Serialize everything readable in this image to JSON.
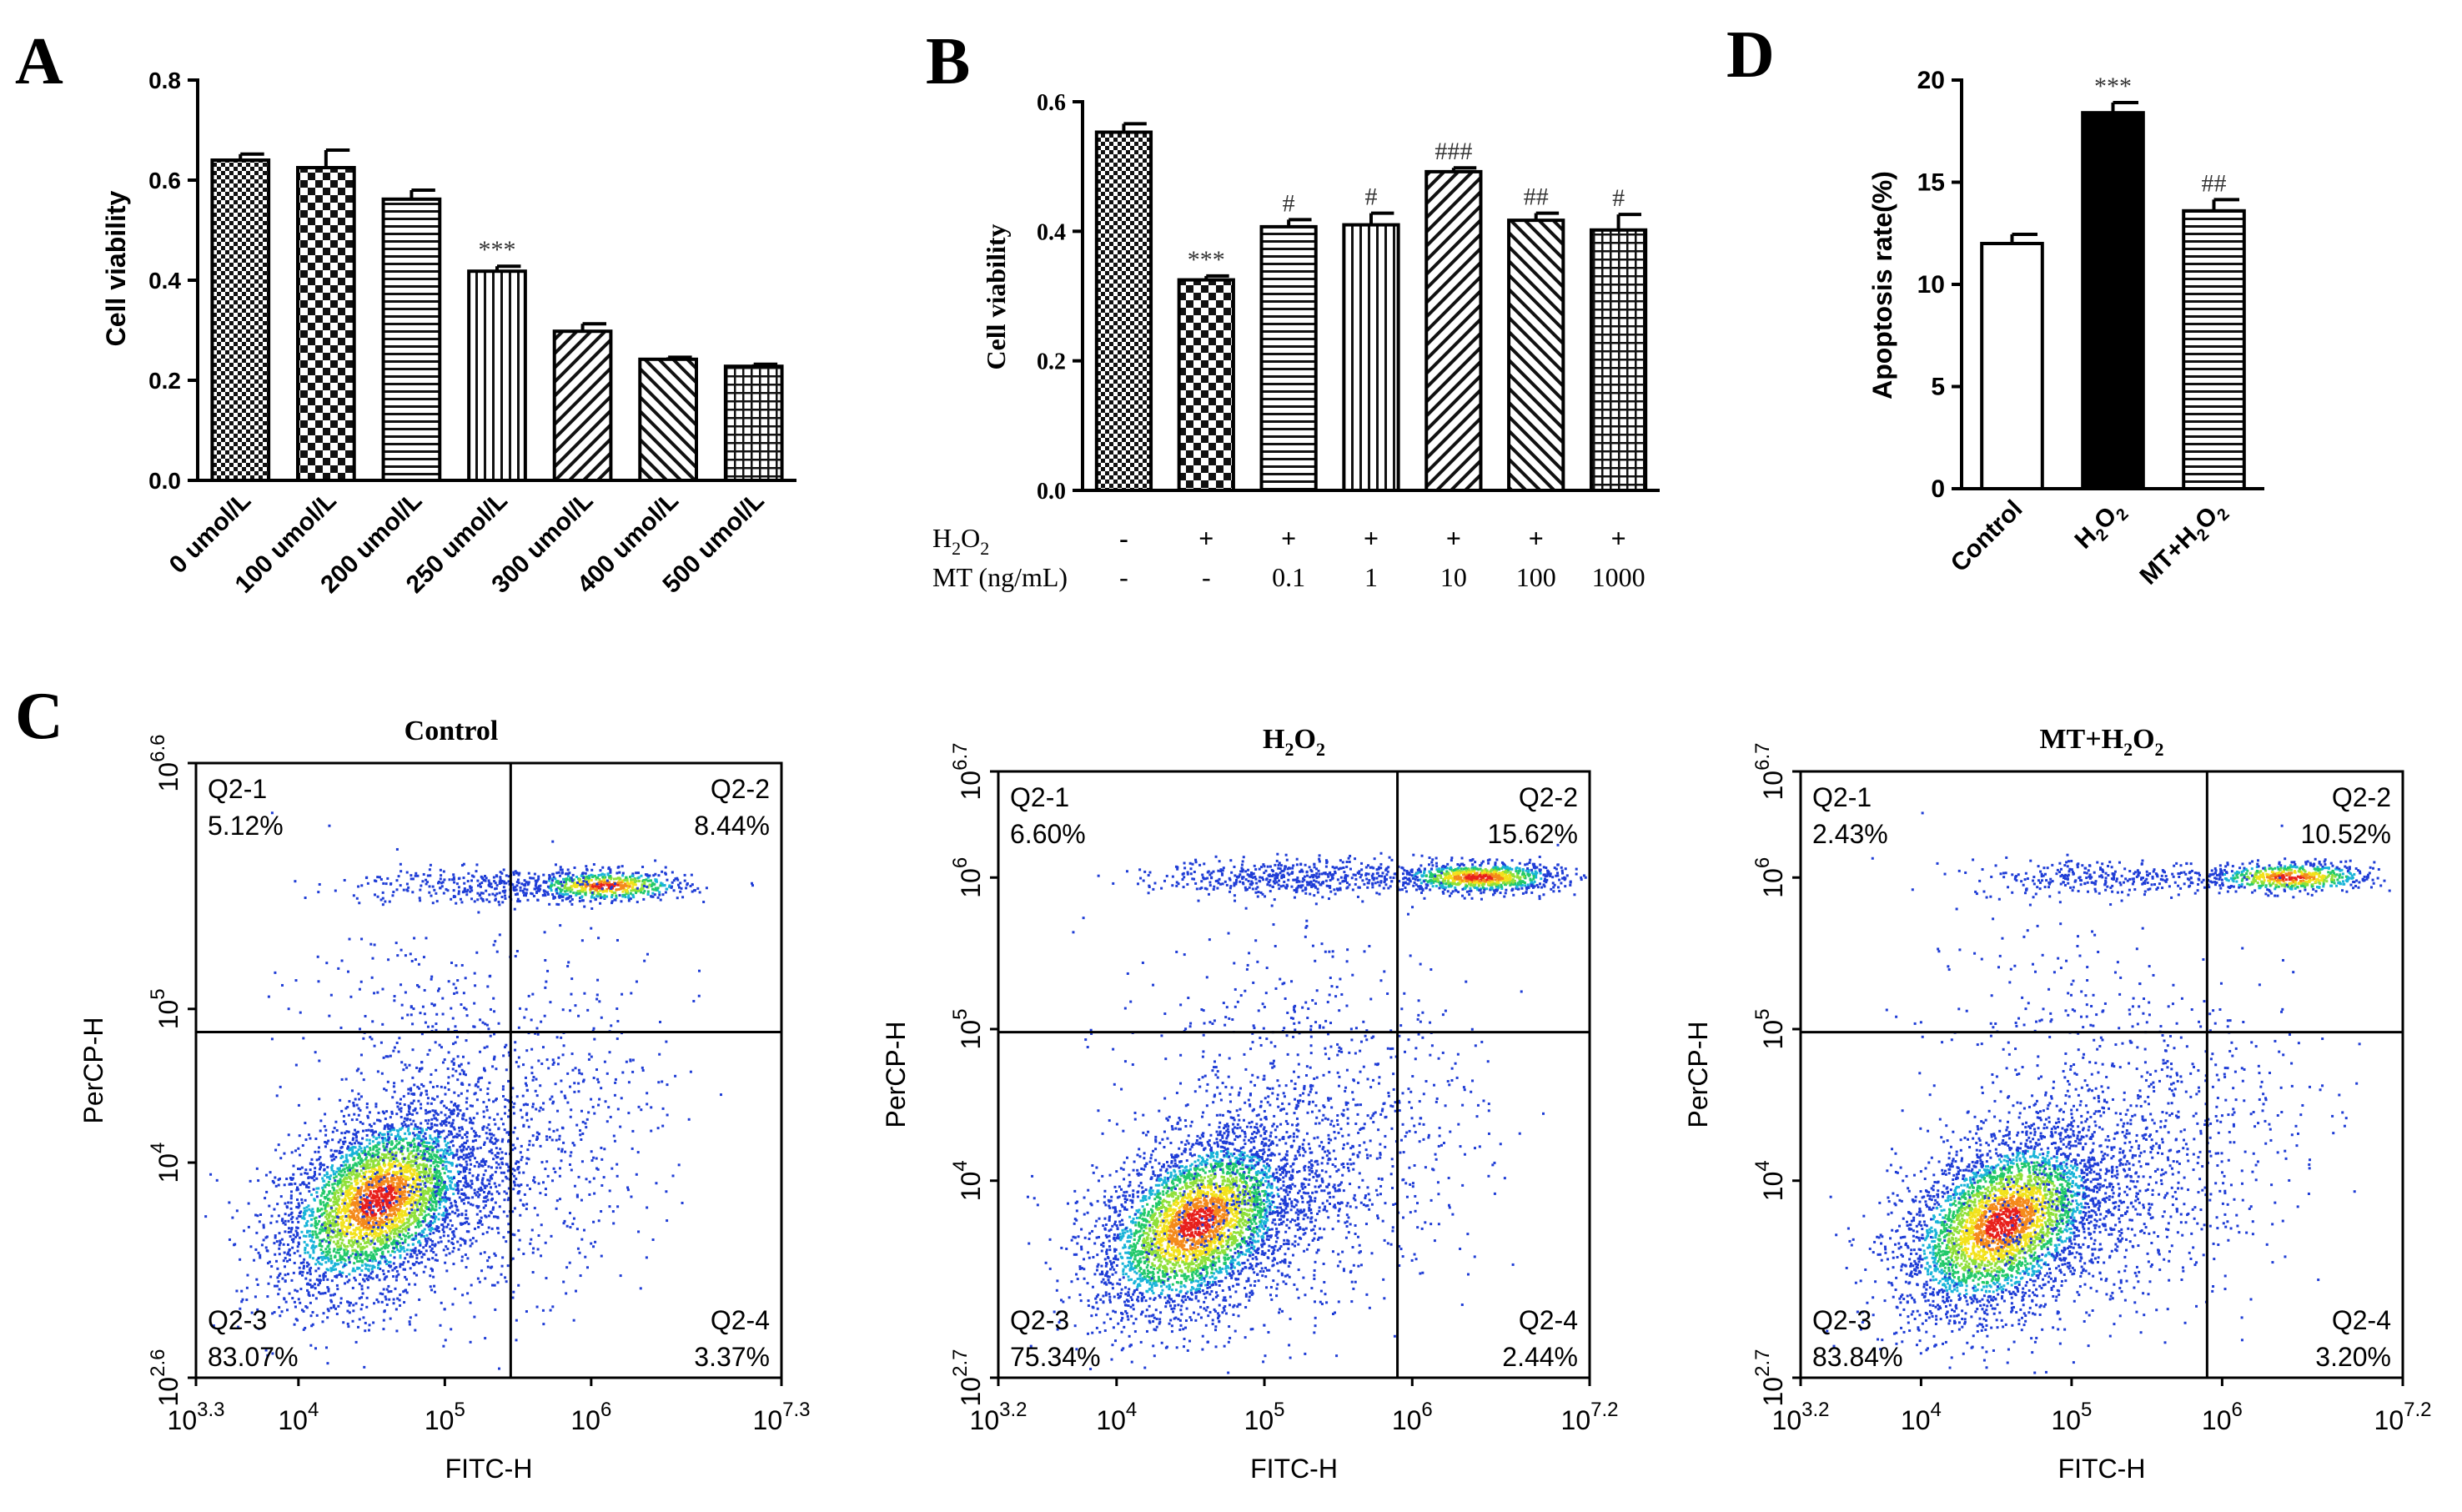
{
  "panel_letters": {
    "a": "A",
    "b": "B",
    "c": "C",
    "d": "D"
  },
  "chart_data": [
    {
      "id": "A",
      "type": "bar",
      "ylabel": "Cell viability",
      "ylim": [
        0,
        0.8
      ],
      "yticks": [
        "0.0",
        "0.2",
        "0.4",
        "0.6",
        "0.8"
      ],
      "categories": [
        "0 umol/L",
        "100 umol/L",
        "200 umol/L",
        "250 umol/L",
        "300 umol/L",
        "400 umol/L",
        "500 umol/L"
      ],
      "values": [
        0.64,
        0.625,
        0.562,
        0.418,
        0.298,
        0.242,
        0.228
      ],
      "errors": [
        0.012,
        0.035,
        0.018,
        0.01,
        0.015,
        0.004,
        0.004
      ],
      "patterns": [
        "checker",
        "checker-coarse",
        "hlines",
        "vlines",
        "diag",
        "diag-back",
        "grid"
      ],
      "annotations": [
        "",
        "",
        "",
        "***",
        "",
        "",
        ""
      ]
    },
    {
      "id": "B",
      "type": "bar",
      "ylabel": "Cell viability",
      "ylim": [
        0,
        0.6
      ],
      "yticks": [
        "0.0",
        "0.2",
        "0.4",
        "0.6"
      ],
      "values": [
        0.553,
        0.325,
        0.407,
        0.41,
        0.492,
        0.417,
        0.402
      ],
      "errors": [
        0.013,
        0.006,
        0.011,
        0.018,
        0.006,
        0.011,
        0.024
      ],
      "patterns": [
        "checker",
        "checker-coarse",
        "hlines",
        "vlines",
        "diag",
        "diag-back",
        "grid"
      ],
      "annotations": [
        "",
        "***",
        "#",
        "#",
        "###",
        "##",
        "#"
      ],
      "row_labels": {
        "h2o2": "H",
        "h2o2_sub": "2",
        "h2o2_tail": "O",
        "h2o2_sub2": "2",
        "mt": "MT (ng/mL)"
      },
      "h2o2_row": [
        "-",
        "+",
        "+",
        "+",
        "+",
        "+",
        "+"
      ],
      "mt_row": [
        "-",
        "-",
        "0.1",
        "1",
        "10",
        "100",
        "1000"
      ]
    },
    {
      "id": "D",
      "type": "bar",
      "ylabel": "Apoptosis rate(%)",
      "ylim": [
        0,
        20
      ],
      "yticks": [
        "0",
        "5",
        "10",
        "15",
        "20"
      ],
      "categories": [
        "Control",
        "H2O2",
        "MT+H2O2"
      ],
      "values": [
        12.0,
        18.4,
        13.6
      ],
      "errors": [
        0.45,
        0.5,
        0.55
      ],
      "patterns": [
        "white",
        "black",
        "hlines"
      ],
      "annotations": [
        "",
        "***",
        "##"
      ]
    },
    {
      "id": "C",
      "type": "scatter",
      "xlabel": "FITC-H",
      "ylabel": "PerCP-H",
      "plots": [
        {
          "title": "Control",
          "quadrants": {
            "q1": "Q2-1",
            "q1v": "5.12%",
            "q2": "Q2-2",
            "q2v": "8.44%",
            "q3": "Q2-3",
            "q3v": "83.07%",
            "q4": "Q2-4",
            "q4v": "3.37%"
          },
          "xrange": [
            3.3,
            7.3
          ],
          "yrange": [
            2.6,
            6.6
          ],
          "xticks": [
            {
              "b": "10",
              "e": "3.3",
              "v": 3.3
            },
            {
              "b": "10",
              "e": "4",
              "v": 4
            },
            {
              "b": "10",
              "e": "5",
              "v": 5
            },
            {
              "b": "10",
              "e": "6",
              "v": 6
            },
            {
              "b": "10",
              "e": "7.3",
              "v": 7.3
            }
          ],
          "yticks": [
            {
              "b": "10",
              "e": "2.6",
              "v": 2.6
            },
            {
              "b": "10",
              "e": "4",
              "v": 4
            },
            {
              "b": "10",
              "e": "5",
              "v": 5
            },
            {
              "b": "10",
              "e": "6.6",
              "v": 6.6
            }
          ],
          "gate": [
            5.45,
            4.85
          ]
        },
        {
          "title": "H",
          "title_sub": "2",
          "title_tail": "O",
          "title_sub2": "2",
          "quadrants": {
            "q1": "Q2-1",
            "q1v": "6.60%",
            "q2": "Q2-2",
            "q2v": "15.62%",
            "q3": "Q2-3",
            "q3v": "75.34%",
            "q4": "Q2-4",
            "q4v": "2.44%"
          },
          "xrange": [
            3.2,
            7.2
          ],
          "yrange": [
            2.7,
            6.7
          ],
          "xticks": [
            {
              "b": "10",
              "e": "3.2",
              "v": 3.2
            },
            {
              "b": "10",
              "e": "4",
              "v": 4
            },
            {
              "b": "10",
              "e": "5",
              "v": 5
            },
            {
              "b": "10",
              "e": "6",
              "v": 6
            },
            {
              "b": "10",
              "e": "7.2",
              "v": 7.2
            }
          ],
          "yticks": [
            {
              "b": "10",
              "e": "2.7",
              "v": 2.7
            },
            {
              "b": "10",
              "e": "4",
              "v": 4
            },
            {
              "b": "10",
              "e": "5",
              "v": 5
            },
            {
              "b": "10",
              "e": "6",
              "v": 6
            },
            {
              "b": "10",
              "e": "6.7",
              "v": 6.7
            }
          ],
          "gate": [
            5.9,
            4.98
          ]
        },
        {
          "title": "MT+H",
          "title_sub": "2",
          "title_tail": "O",
          "title_sub2": "2",
          "quadrants": {
            "q1": "Q2-1",
            "q1v": "2.43%",
            "q2": "Q2-2",
            "q2v": "10.52%",
            "q3": "Q2-3",
            "q3v": "83.84%",
            "q4": "Q2-4",
            "q4v": "3.20%"
          },
          "xrange": [
            3.2,
            7.2
          ],
          "yrange": [
            2.7,
            6.7
          ],
          "xticks": [
            {
              "b": "10",
              "e": "3.2",
              "v": 3.2
            },
            {
              "b": "10",
              "e": "4",
              "v": 4
            },
            {
              "b": "10",
              "e": "5",
              "v": 5
            },
            {
              "b": "10",
              "e": "6",
              "v": 6
            },
            {
              "b": "10",
              "e": "7.2",
              "v": 7.2
            }
          ],
          "yticks": [
            {
              "b": "10",
              "e": "2.7",
              "v": 2.7
            },
            {
              "b": "10",
              "e": "4",
              "v": 4
            },
            {
              "b": "10",
              "e": "5",
              "v": 5
            },
            {
              "b": "10",
              "e": "6",
              "v": 6
            },
            {
              "b": "10",
              "e": "6.7",
              "v": 6.7
            }
          ],
          "gate": [
            5.9,
            4.98
          ]
        }
      ]
    }
  ]
}
